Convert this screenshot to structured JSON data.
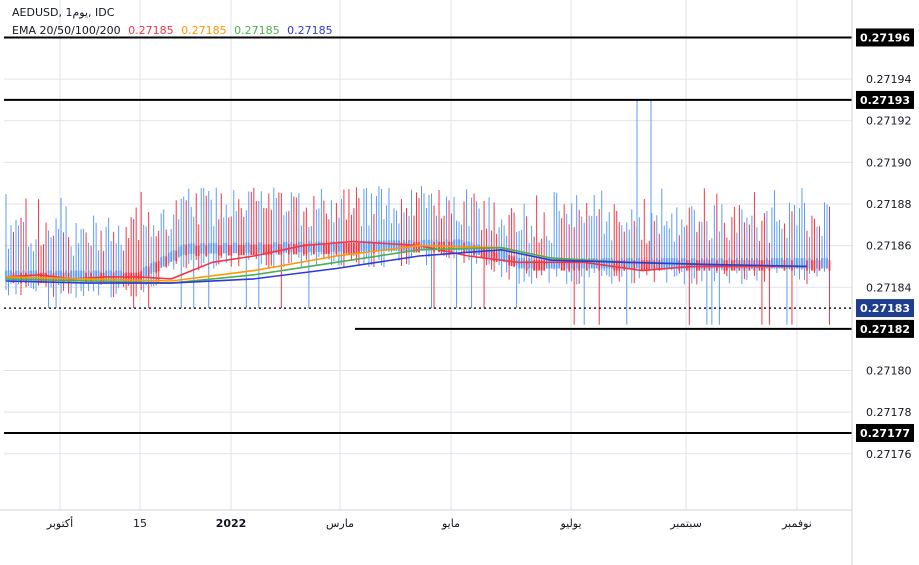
{
  "legend": {
    "symbol_line": "AEDUSD, 1يوم, IDC",
    "ema_label": "EMA 20/50/100/200",
    "ema_values": [
      "0.27185",
      "0.27185",
      "0.27185",
      "0.27185"
    ]
  },
  "colors": {
    "up": "#5b9cf6",
    "down": "#f23645",
    "ema20": "#f23645",
    "ema50": "#ff9800",
    "ema100": "#4caf50",
    "ema200": "#2e39d9",
    "grid": "#e0e3eb",
    "current_price_bg": "#1e3d8f"
  },
  "chart_data": {
    "type": "candlestick",
    "symbol": "AEDUSD",
    "interval": "1D",
    "source": "IDC",
    "y_ticks": [
      "0.27194",
      "0.27192",
      "0.27190",
      "0.27188",
      "0.27186",
      "0.27184",
      "0.27180",
      "0.27178",
      "0.27176"
    ],
    "ylim": [
      0.271733,
      0.271978
    ],
    "x_ticks": [
      "أكتوبر",
      "15",
      "2022",
      "مارس",
      "مايو",
      "يوليو",
      "سبتمبر",
      "نوفمبر"
    ],
    "horizontal_levels": [
      {
        "label": "0.27196",
        "value": 0.27196,
        "start": "full"
      },
      {
        "label": "0.27193",
        "value": 0.27193,
        "start": "full"
      },
      {
        "label": "0.27182",
        "value": 0.27182,
        "start": "partial"
      },
      {
        "label": "0.27177",
        "value": 0.27177,
        "start": "full"
      }
    ],
    "current_price": {
      "label": "0.27183",
      "value": 0.27183
    },
    "ema_series": [
      {
        "name": "EMA 20",
        "values": [
          [
            0.0,
            0.271845
          ],
          [
            0.04,
            0.271846
          ],
          [
            0.08,
            0.271844
          ],
          [
            0.12,
            0.271845
          ],
          [
            0.16,
            0.271845
          ],
          [
            0.2,
            0.271844
          ],
          [
            0.25,
            0.271852
          ],
          [
            0.3,
            0.271855
          ],
          [
            0.36,
            0.27186
          ],
          [
            0.42,
            0.271862
          ],
          [
            0.5,
            0.27186
          ],
          [
            0.56,
            0.271855
          ],
          [
            0.62,
            0.271852
          ],
          [
            0.7,
            0.271852
          ],
          [
            0.77,
            0.271848
          ],
          [
            0.83,
            0.27185
          ],
          [
            0.9,
            0.27185
          ],
          [
            0.97,
            0.27185
          ]
        ]
      },
      {
        "name": "EMA 50",
        "values": [
          [
            0.0,
            0.271845
          ],
          [
            0.1,
            0.271844
          ],
          [
            0.2,
            0.271843
          ],
          [
            0.3,
            0.271848
          ],
          [
            0.4,
            0.271855
          ],
          [
            0.5,
            0.27186
          ],
          [
            0.6,
            0.271859
          ],
          [
            0.66,
            0.271854
          ],
          [
            0.75,
            0.271852
          ],
          [
            0.85,
            0.271851
          ],
          [
            0.97,
            0.27185
          ]
        ]
      },
      {
        "name": "EMA 100",
        "values": [
          [
            0.0,
            0.271844
          ],
          [
            0.1,
            0.271843
          ],
          [
            0.2,
            0.271842
          ],
          [
            0.3,
            0.271846
          ],
          [
            0.4,
            0.271852
          ],
          [
            0.5,
            0.271858
          ],
          [
            0.6,
            0.271859
          ],
          [
            0.66,
            0.271854
          ],
          [
            0.75,
            0.271852
          ],
          [
            0.85,
            0.271851
          ],
          [
            0.97,
            0.27185
          ]
        ]
      },
      {
        "name": "EMA 200",
        "values": [
          [
            0.0,
            0.271843
          ],
          [
            0.1,
            0.271842
          ],
          [
            0.2,
            0.271842
          ],
          [
            0.3,
            0.271844
          ],
          [
            0.4,
            0.271849
          ],
          [
            0.5,
            0.271855
          ],
          [
            0.6,
            0.271858
          ],
          [
            0.66,
            0.271853
          ],
          [
            0.75,
            0.271852
          ],
          [
            0.85,
            0.271851
          ],
          [
            0.97,
            0.27185
          ]
        ]
      }
    ]
  }
}
